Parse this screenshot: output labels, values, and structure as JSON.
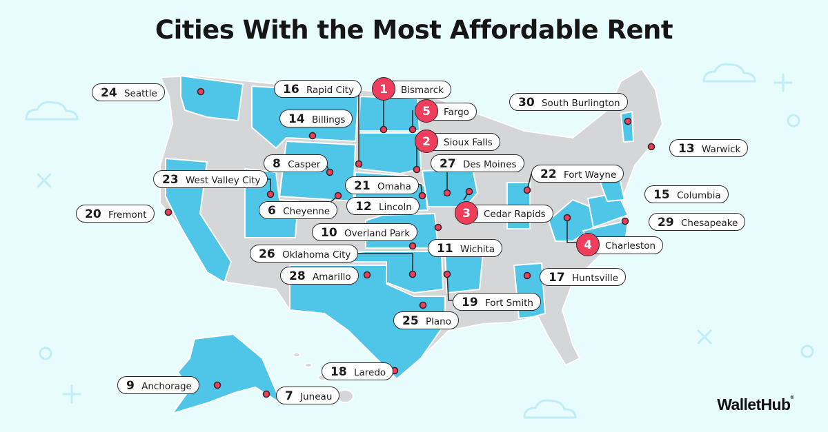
{
  "title": "Cities With the Most Affordable Rent",
  "brand": {
    "name": "WalletHub",
    "mark": "®"
  },
  "colors": {
    "background": "#e8fbfd",
    "highlight_state": "#4fc6e8",
    "other_state": "#d4d6d8",
    "marker": "#ef3e5c",
    "top5_badge": "#ef3e5c"
  },
  "cities": [
    {
      "rank": "1",
      "name": "Bismarck",
      "top5": true
    },
    {
      "rank": "2",
      "name": "Sioux Falls",
      "top5": true
    },
    {
      "rank": "3",
      "name": "Cedar Rapids",
      "top5": true
    },
    {
      "rank": "4",
      "name": "Charleston",
      "top5": true
    },
    {
      "rank": "5",
      "name": "Fargo",
      "top5": true
    },
    {
      "rank": "6",
      "name": "Cheyenne"
    },
    {
      "rank": "7",
      "name": "Juneau"
    },
    {
      "rank": "8",
      "name": "Casper"
    },
    {
      "rank": "9",
      "name": "Anchorage"
    },
    {
      "rank": "10",
      "name": "Overland Park"
    },
    {
      "rank": "11",
      "name": "Wichita"
    },
    {
      "rank": "12",
      "name": "Lincoln"
    },
    {
      "rank": "13",
      "name": "Warwick"
    },
    {
      "rank": "14",
      "name": "Billings"
    },
    {
      "rank": "15",
      "name": "Columbia"
    },
    {
      "rank": "16",
      "name": "Rapid City"
    },
    {
      "rank": "17",
      "name": "Huntsville"
    },
    {
      "rank": "18",
      "name": "Laredo"
    },
    {
      "rank": "19",
      "name": "Fort Smith"
    },
    {
      "rank": "20",
      "name": "Fremont"
    },
    {
      "rank": "21",
      "name": "Omaha"
    },
    {
      "rank": "22",
      "name": "Fort Wayne"
    },
    {
      "rank": "23",
      "name": "West Valley City"
    },
    {
      "rank": "24",
      "name": "Seattle"
    },
    {
      "rank": "25",
      "name": "Plano"
    },
    {
      "rank": "26",
      "name": "Oklahoma City"
    },
    {
      "rank": "27",
      "name": "Des Moines"
    },
    {
      "rank": "28",
      "name": "Amarillo"
    },
    {
      "rank": "29",
      "name": "Chesapeake"
    },
    {
      "rank": "30",
      "name": "South Burlington"
    }
  ]
}
